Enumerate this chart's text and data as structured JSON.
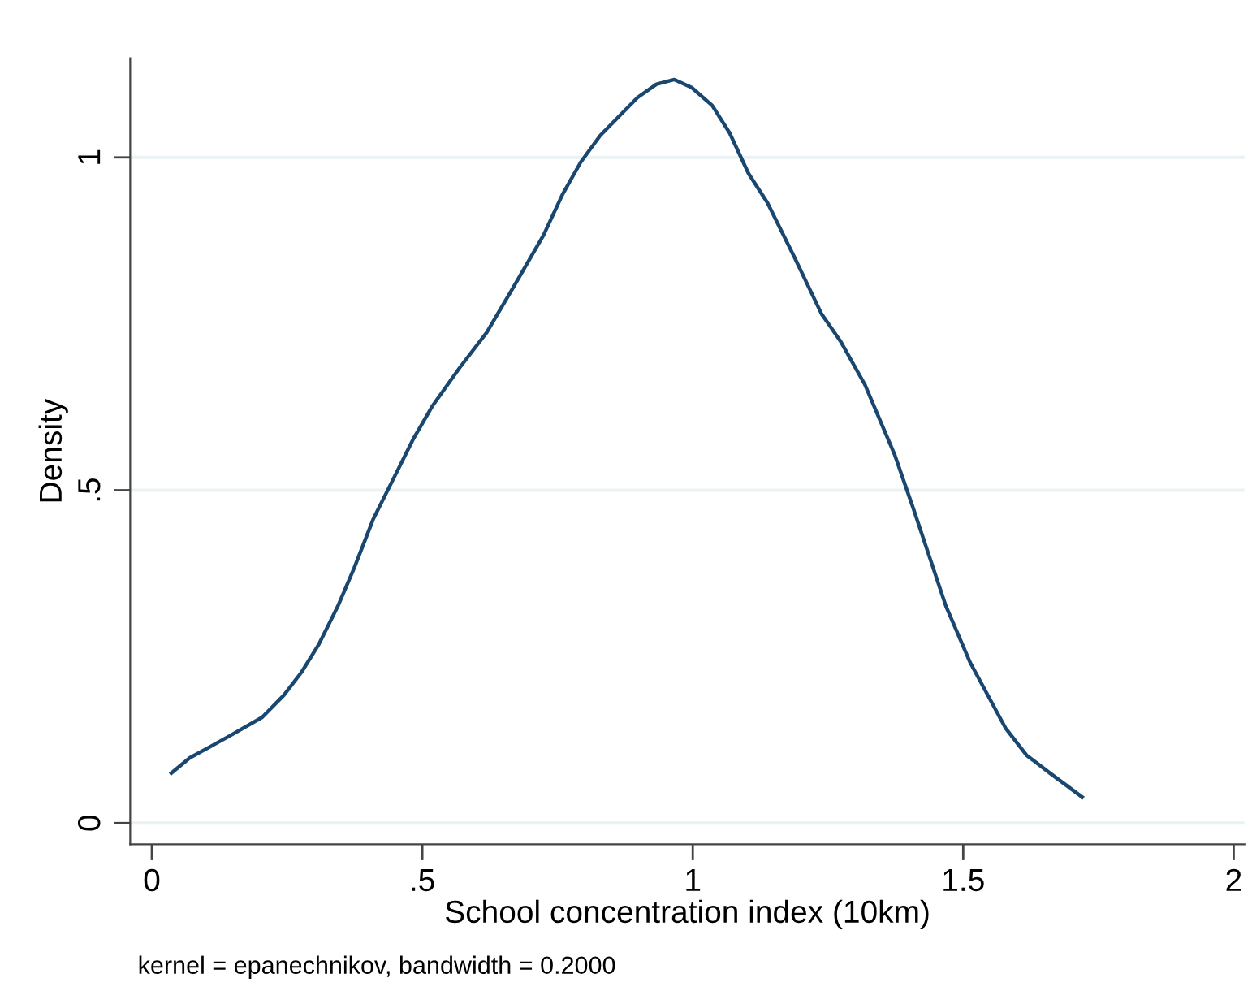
{
  "chart_data": {
    "type": "line",
    "xlabel": "School concentration index (10km)",
    "ylabel": "Density",
    "annotations": [
      "kernel = epanechnikov, bandwidth = 0.2000"
    ],
    "x": [
      0.036,
      0.07,
      0.104,
      0.144,
      0.204,
      0.244,
      0.277,
      0.309,
      0.344,
      0.374,
      0.409,
      0.444,
      0.484,
      0.519,
      0.569,
      0.619,
      0.669,
      0.724,
      0.759,
      0.793,
      0.829,
      0.864,
      0.898,
      0.933,
      0.966,
      0.998,
      1.036,
      1.068,
      1.103,
      1.138,
      1.188,
      1.238,
      1.273,
      1.318,
      1.373,
      1.408,
      1.468,
      1.513,
      1.578,
      1.617,
      1.662,
      1.72
    ],
    "series": [
      {
        "color": "#1a476f",
        "values": [
          0.075,
          0.098,
          0.113,
          0.131,
          0.159,
          0.192,
          0.227,
          0.269,
          0.326,
          0.383,
          0.456,
          0.513,
          0.578,
          0.627,
          0.684,
          0.737,
          0.806,
          0.883,
          0.944,
          0.993,
          1.033,
          1.062,
          1.09,
          1.11,
          1.117,
          1.105,
          1.078,
          1.037,
          0.976,
          0.932,
          0.85,
          0.765,
          0.724,
          0.659,
          0.554,
          0.472,
          0.326,
          0.241,
          0.143,
          0.102,
          0.074,
          0.039
        ]
      }
    ],
    "xlim": [
      -0.04,
      2.02
    ],
    "ylim": [
      -0.032,
      1.149
    ],
    "xticks": [
      0,
      {
        "value": 0.5,
        "label": ".5"
      },
      1,
      {
        "value": 1.5,
        "label": "1.5"
      },
      2
    ],
    "yticks": [
      0,
      {
        "value": 0.5,
        "label": ".5"
      },
      1
    ],
    "grid": "y",
    "marker": "none",
    "line_style": "solid",
    "legend": false
  }
}
